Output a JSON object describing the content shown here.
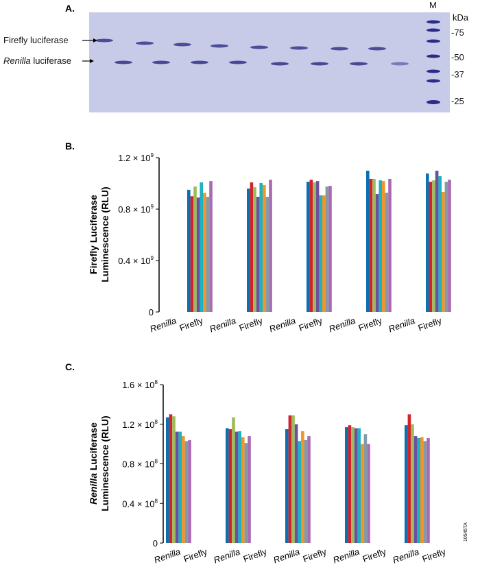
{
  "gel": {
    "panel": "A.",
    "marker_lane": "M",
    "unit": "kDa",
    "markers": [
      "75",
      "50",
      "37",
      "25"
    ],
    "band_labels": [
      {
        "text": "Firefly luciferase",
        "italic": ""
      },
      {
        "text": " luciferase",
        "italic": "Renilla"
      }
    ]
  },
  "colors": [
    "#0b6fb0",
    "#d2232b",
    "#9dbb5a",
    "#6a51a0",
    "#1cb2bf",
    "#f0952a",
    "#8599a9",
    "#a96ab1"
  ],
  "chart_data": [
    {
      "type": "bar",
      "panel": "B.",
      "ylabel": "Firefly Luciferase Luminescence (RLU)",
      "ylim": [
        0,
        1200000000.0
      ],
      "yticks": [
        {
          "v": 0,
          "label": "0"
        },
        {
          "v": 400000000.0,
          "label": "0.4 × 10",
          "exp": "9"
        },
        {
          "v": 800000000.0,
          "label": "0.8 × 10",
          "exp": "9"
        },
        {
          "v": 1200000000.0,
          "label": "1.2 × 10",
          "exp": "9"
        }
      ],
      "categories": [
        "Renilla",
        "Firefly",
        "Renilla",
        "Firefly",
        "Renilla",
        "Firefly",
        "Renilla",
        "Firefly",
        "Renilla",
        "Firefly"
      ],
      "groups": [
        {
          "category_index": 1,
          "values": [
            950000000.0,
            900000000.0,
            976000000.0,
            890000000.0,
            1008000000.0,
            928000000.0,
            896000000.0,
            1018000000.0
          ]
        },
        {
          "category_index": 3,
          "values": [
            960000000.0,
            1008000000.0,
            970000000.0,
            896000000.0,
            1003000000.0,
            987000000.0,
            896000000.0,
            1029000000.0
          ]
        },
        {
          "category_index": 5,
          "values": [
            1013000000.0,
            1029000000.0,
            1008000000.0,
            1018000000.0,
            907000000.0,
            907000000.0,
            976000000.0,
            981000000.0
          ]
        },
        {
          "category_index": 7,
          "values": [
            1099000000.0,
            1035000000.0,
            1035000000.0,
            917000000.0,
            1024000000.0,
            1018000000.0,
            928000000.0,
            1035000000.0
          ]
        },
        {
          "category_index": 9,
          "values": [
            1077000000.0,
            1013000000.0,
            1024000000.0,
            1099000000.0,
            1056000000.0,
            933000000.0,
            1013000000.0,
            1029000000.0
          ]
        }
      ]
    },
    {
      "type": "bar",
      "panel": "C.",
      "ylabel_italic": "Renilla",
      "ylabel": " Luciferase Luminescence (RLU)",
      "ylim": [
        0,
        160000000.0
      ],
      "yticks": [
        {
          "v": 0,
          "label": "0"
        },
        {
          "v": 40000000.0,
          "label": "0.4 × 10",
          "exp": "8"
        },
        {
          "v": 80000000.0,
          "label": "0.8 × 10",
          "exp": "8"
        },
        {
          "v": 120000000.0,
          "label": "1.2 × 10",
          "exp": "8"
        },
        {
          "v": 160000000.0,
          "label": "1.6 × 10",
          "exp": "8"
        }
      ],
      "categories": [
        "Renilla",
        "Firefly",
        "Renilla",
        "Firefly",
        "Renilla",
        "Firefly",
        "Renilla",
        "Firefly",
        "Renilla",
        "Firefly"
      ],
      "groups": [
        {
          "category_index": 0,
          "values": [
            127000000.0,
            130000000.0,
            128000000.0,
            112500000.0,
            112500000.0,
            108000000.0,
            103000000.0,
            104000000.0
          ]
        },
        {
          "category_index": 2,
          "values": [
            116000000.0,
            115000000.0,
            127000000.0,
            112500000.0,
            113000000.0,
            107000000.0,
            101000000.0,
            108000000.0
          ]
        },
        {
          "category_index": 4,
          "values": [
            115000000.0,
            129000000.0,
            129000000.0,
            120000000.0,
            103000000.0,
            113000000.0,
            104000000.0,
            108000000.0
          ]
        },
        {
          "category_index": 6,
          "values": [
            117000000.0,
            119000000.0,
            117000000.0,
            116000000.0,
            116000000.0,
            100000000.0,
            110000000.0,
            100000000.0
          ]
        },
        {
          "category_index": 8,
          "values": [
            119000000.0,
            130000000.0,
            120000000.0,
            108000000.0,
            106000000.0,
            107000000.0,
            103000000.0,
            106000000.0
          ]
        }
      ]
    }
  ],
  "figure_id": "10545TA"
}
